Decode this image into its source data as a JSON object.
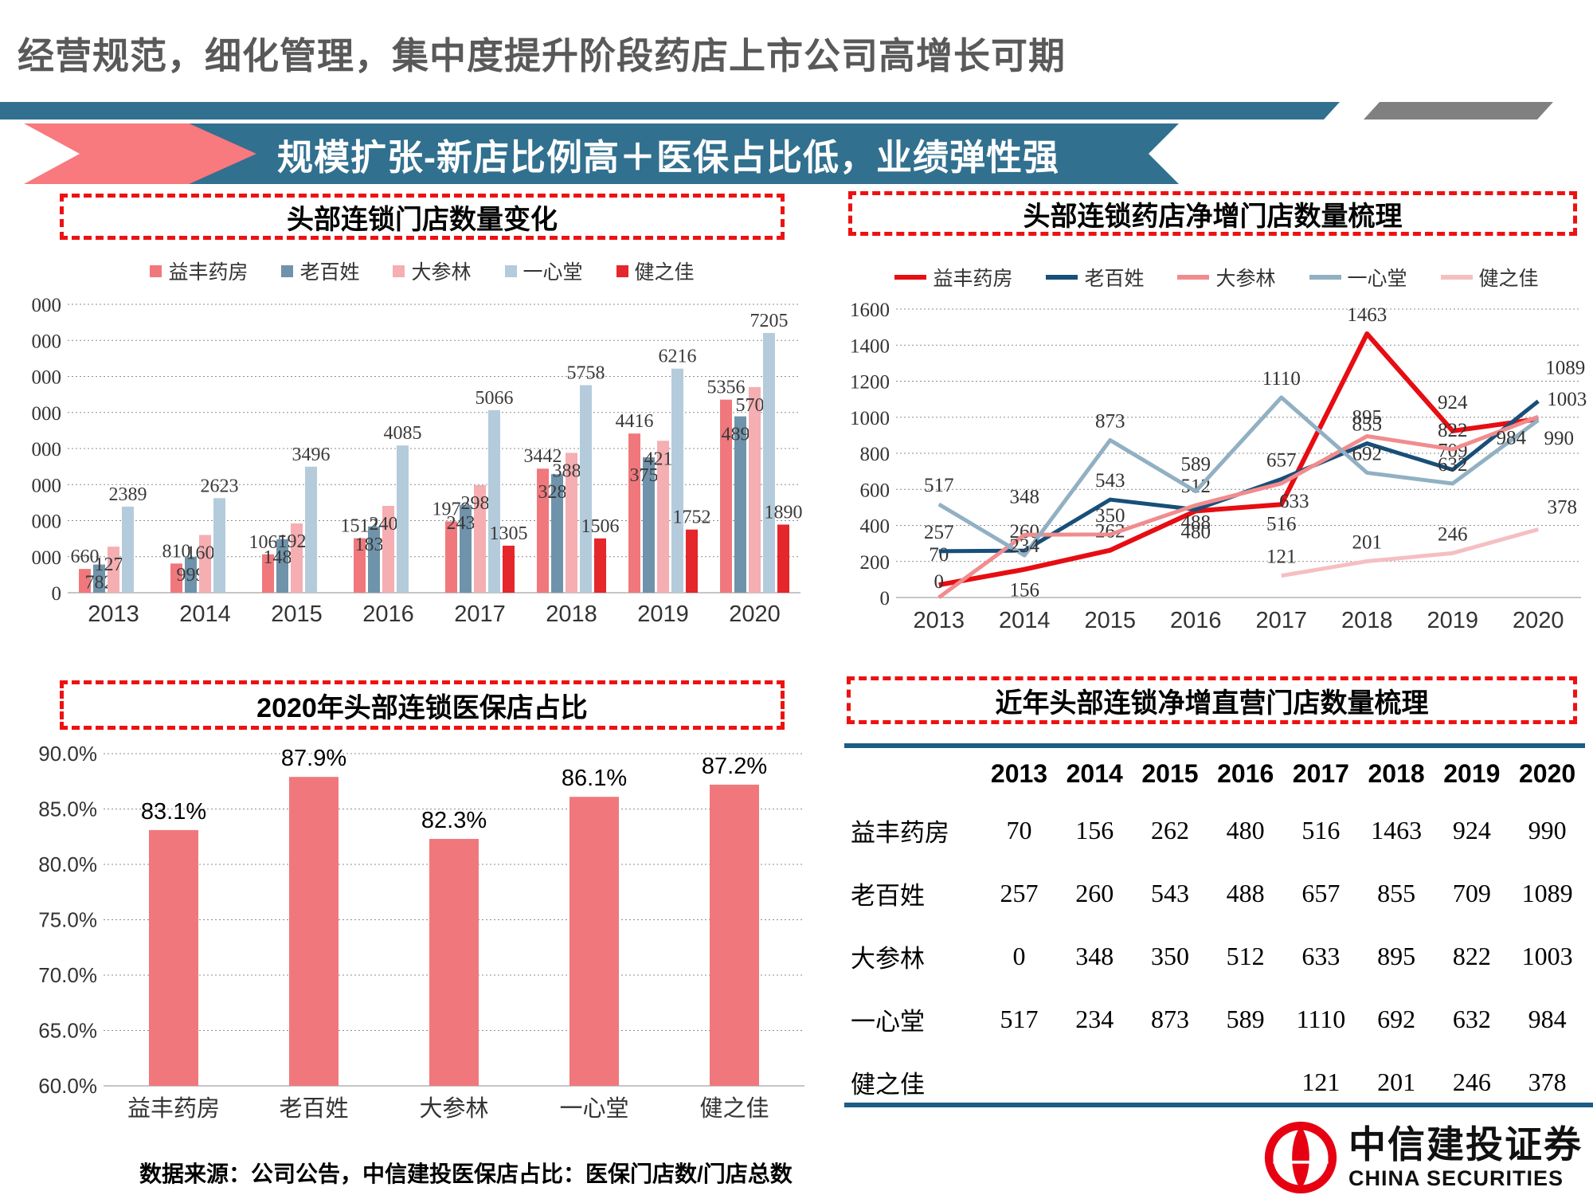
{
  "page": {
    "title": "经营规范，细化管理，集中度提升阶段药店上市公司高增长可期",
    "banner_title": "规模扩张-新店比例高＋医保占比低，业绩弹性强",
    "source_note": "数据来源：公司公告，中信建投医保店占比：医保门店数/门店总数"
  },
  "logo": {
    "name_cn": "中信建投证券",
    "name_en": "CHINA SECURITIES"
  },
  "colors": {
    "title_gray": "#595959",
    "banner_blue": "#31708F",
    "arrow_pink": "#F8797E",
    "strip_gray": "#808080",
    "dashed_red": "#EE1111",
    "table_rule_blue": "#1D5C85",
    "logo_red": "#E60012"
  },
  "chart_data": [
    {
      "id": "store-count",
      "type": "bar",
      "title": "头部连锁门店数量变化",
      "categories": [
        "2013",
        "2014",
        "2015",
        "2016",
        "2017",
        "2018",
        "2019",
        "2020"
      ],
      "series": [
        {
          "name": "益丰药房",
          "color": "#F0787C",
          "values": [
            660,
            810,
            1065,
            1512,
            1979,
            3442,
            4416,
            5356
          ]
        },
        {
          "name": "老百姓",
          "color": "#6F93AA",
          "values": [
            782,
            999,
            1483,
            1838,
            2434,
            3289,
            3756,
            4892
          ]
        },
        {
          "name": "大参林",
          "color": "#F5AEB1",
          "values": [
            1278,
            1602,
            1921,
            2409,
            2985,
            3880,
            4215,
            5705
          ]
        },
        {
          "name": "一心堂",
          "color": "#B4CBDB",
          "values": [
            2389,
            2623,
            3496,
            4085,
            5066,
            5758,
            6216,
            7205
          ]
        },
        {
          "name": "健之佳",
          "color": "#E5262B",
          "values": [
            null,
            null,
            null,
            null,
            1305,
            1506,
            1752,
            1890
          ]
        }
      ],
      "ylim": [
        0,
        8000
      ],
      "ystep": 1000,
      "grid": true,
      "legend_position": "top"
    },
    {
      "id": "net-increase",
      "type": "line",
      "title": "头部连锁药店净增门店数量梳理",
      "categories": [
        "2013",
        "2014",
        "2015",
        "2016",
        "2017",
        "2018",
        "2019",
        "2020"
      ],
      "series": [
        {
          "name": "益丰药房",
          "color": "#E60D13",
          "values": [
            70,
            156,
            262,
            480,
            516,
            1463,
            924,
            990
          ]
        },
        {
          "name": "老百姓",
          "color": "#174F79",
          "values": [
            257,
            260,
            543,
            488,
            657,
            855,
            709,
            1089
          ]
        },
        {
          "name": "大参林",
          "color": "#F18C8E",
          "values": [
            0,
            348,
            350,
            512,
            633,
            895,
            822,
            1003
          ]
        },
        {
          "name": "一心堂",
          "color": "#92B0C3",
          "values": [
            517,
            234,
            873,
            589,
            1110,
            692,
            632,
            984
          ]
        },
        {
          "name": "健之佳",
          "color": "#F5BFC1",
          "values": [
            null,
            null,
            null,
            null,
            121,
            201,
            246,
            378
          ]
        }
      ],
      "ylim": [
        0,
        1600
      ],
      "ystep": 200,
      "grid": true,
      "legend_position": "top"
    },
    {
      "id": "medicare-share",
      "type": "bar",
      "title": "2020年头部连锁医保店占比",
      "categories": [
        "益丰药房",
        "老百姓",
        "大参林",
        "一心堂",
        "健之佳"
      ],
      "values": [
        83.1,
        87.9,
        82.3,
        86.1,
        87.2
      ],
      "labels": [
        "83.1%",
        "87.9%",
        "82.3%",
        "86.1%",
        "87.2%"
      ],
      "bar_color": "#F0787C",
      "ylim": [
        60,
        90
      ],
      "ystep": 5,
      "grid": true,
      "ytick_format": "percent_one_decimal"
    },
    {
      "id": "net-increase-table",
      "type": "table",
      "title": "近年头部连锁净增直营门店数量梳理",
      "columns": [
        "",
        "2013",
        "2014",
        "2015",
        "2016",
        "2017",
        "2018",
        "2019",
        "2020"
      ],
      "rows": [
        [
          "益丰药房",
          "70",
          "156",
          "262",
          "480",
          "516",
          "1463",
          "924",
          "990"
        ],
        [
          "老百姓",
          "257",
          "260",
          "543",
          "488",
          "657",
          "855",
          "709",
          "1089"
        ],
        [
          "大参林",
          "0",
          "348",
          "350",
          "512",
          "633",
          "895",
          "822",
          "1003"
        ],
        [
          "一心堂",
          "517",
          "234",
          "873",
          "589",
          "1110",
          "692",
          "632",
          "984"
        ],
        [
          "健之佳",
          "",
          "",
          "",
          "",
          "121",
          "201",
          "246",
          "378"
        ]
      ]
    }
  ]
}
